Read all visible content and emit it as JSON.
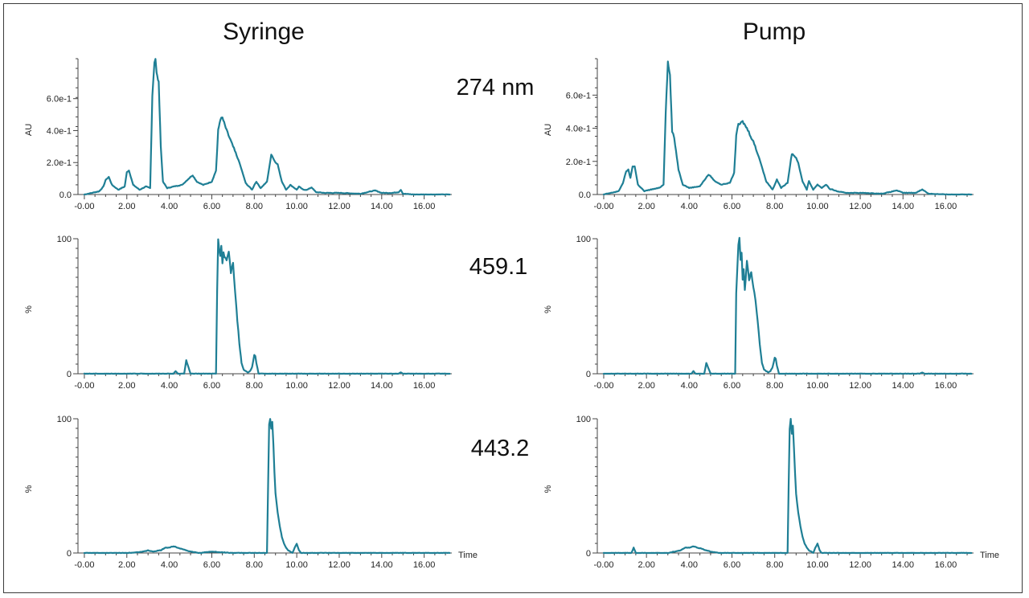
{
  "figure": {
    "column_titles": [
      "Syringe",
      "Pump"
    ],
    "row_labels": [
      "274 nm",
      "459.1",
      "443.2"
    ],
    "trace_color": "#1f7f95"
  },
  "chart_data": [
    {
      "id": "syringe-274nm",
      "type": "line",
      "column": "Syringe",
      "row_label": "274 nm",
      "ylabel": "AU",
      "xlabel": "",
      "xlim": [
        -0.3,
        17.3
      ],
      "ylim": [
        0,
        0.85
      ],
      "x_ticks": [
        "-0.00",
        "2.00",
        "4.00",
        "6.00",
        "8.00",
        "10.00",
        "12.00",
        "14.00",
        "16.00"
      ],
      "y_ticks": [
        {
          "v": 0,
          "label": "0.0"
        },
        {
          "v": 0.2,
          "label": "2.0e-1"
        },
        {
          "v": 0.4,
          "label": "4.0e-1"
        },
        {
          "v": 0.6,
          "label": "6.0e-1"
        }
      ],
      "x": [
        0.0,
        0.7,
        0.9,
        1.0,
        1.15,
        1.3,
        1.6,
        1.9,
        2.0,
        2.1,
        2.3,
        2.6,
        2.9,
        3.1,
        3.2,
        3.3,
        3.35,
        3.4,
        3.5,
        3.6,
        3.7,
        3.9,
        4.2,
        4.6,
        5.0,
        5.1,
        5.3,
        5.6,
        6.0,
        6.2,
        6.3,
        6.4,
        6.5,
        6.7,
        7.0,
        7.3,
        7.6,
        7.9,
        8.0,
        8.1,
        8.3,
        8.6,
        8.8,
        9.0,
        9.1,
        9.3,
        9.5,
        9.7,
        10.0,
        10.1,
        10.3,
        10.5,
        10.7,
        10.9,
        11.3,
        12.0,
        13.0,
        13.5,
        13.7,
        14.0,
        14.5,
        14.8,
        14.9,
        15.0,
        15.5,
        16.0,
        17.2
      ],
      "y": [
        0.0,
        0.02,
        0.05,
        0.09,
        0.11,
        0.06,
        0.03,
        0.05,
        0.14,
        0.15,
        0.06,
        0.03,
        0.05,
        0.04,
        0.62,
        0.83,
        0.85,
        0.76,
        0.7,
        0.3,
        0.08,
        0.04,
        0.05,
        0.06,
        0.11,
        0.12,
        0.08,
        0.06,
        0.08,
        0.15,
        0.4,
        0.47,
        0.48,
        0.4,
        0.3,
        0.2,
        0.07,
        0.03,
        0.06,
        0.08,
        0.04,
        0.08,
        0.25,
        0.2,
        0.19,
        0.08,
        0.03,
        0.06,
        0.03,
        0.05,
        0.03,
        0.03,
        0.045,
        0.015,
        0.01,
        0.01,
        0.005,
        0.02,
        0.025,
        0.01,
        0.01,
        0.015,
        0.03,
        0.005,
        0.0,
        0.0,
        0.0
      ]
    },
    {
      "id": "pump-274nm",
      "type": "line",
      "column": "Pump",
      "row_label": "274 nm",
      "ylabel": "AU",
      "xlabel": "",
      "xlim": [
        -0.3,
        17.3
      ],
      "ylim": [
        0,
        0.82
      ],
      "x_ticks": [
        "-0.00",
        "2.00",
        "4.00",
        "6.00",
        "8.00",
        "10.00",
        "12.00",
        "14.00",
        "16.00"
      ],
      "y_ticks": [
        {
          "v": 0,
          "label": "0.0"
        },
        {
          "v": 0.2,
          "label": "2.0e-1"
        },
        {
          "v": 0.4,
          "label": "4.0e-1"
        },
        {
          "v": 0.6,
          "label": "6.0e-1"
        }
      ],
      "x": [
        0.0,
        0.7,
        0.9,
        1.05,
        1.15,
        1.25,
        1.35,
        1.45,
        1.6,
        1.9,
        2.2,
        2.6,
        2.8,
        2.9,
        3.0,
        3.1,
        3.2,
        3.3,
        3.5,
        3.7,
        4.0,
        4.5,
        4.9,
        5.0,
        5.2,
        5.5,
        5.9,
        6.1,
        6.2,
        6.3,
        6.5,
        6.7,
        7.0,
        7.3,
        7.6,
        7.9,
        8.0,
        8.1,
        8.3,
        8.6,
        8.8,
        9.0,
        9.1,
        9.3,
        9.5,
        9.6,
        9.8,
        10.0,
        10.2,
        10.4,
        10.6,
        10.7,
        10.9,
        11.3,
        12.0,
        13.0,
        13.4,
        13.7,
        14.0,
        14.6,
        14.8,
        14.9,
        15.2,
        16.0,
        17.2
      ],
      "y": [
        0.0,
        0.02,
        0.07,
        0.14,
        0.15,
        0.1,
        0.17,
        0.17,
        0.06,
        0.02,
        0.03,
        0.04,
        0.06,
        0.5,
        0.8,
        0.72,
        0.38,
        0.34,
        0.15,
        0.06,
        0.04,
        0.05,
        0.12,
        0.11,
        0.08,
        0.06,
        0.07,
        0.13,
        0.36,
        0.42,
        0.44,
        0.4,
        0.32,
        0.21,
        0.08,
        0.03,
        0.06,
        0.09,
        0.04,
        0.07,
        0.25,
        0.22,
        0.19,
        0.08,
        0.03,
        0.08,
        0.03,
        0.06,
        0.04,
        0.06,
        0.03,
        0.03,
        0.02,
        0.01,
        0.01,
        0.005,
        0.015,
        0.025,
        0.01,
        0.01,
        0.025,
        0.03,
        0.005,
        0.0,
        0.0
      ]
    },
    {
      "id": "syringe-459",
      "type": "line",
      "column": "Syringe",
      "row_label": "459.1",
      "ylabel": "%",
      "xlabel": "",
      "xlim": [
        -0.3,
        17.3
      ],
      "ylim": [
        0,
        100
      ],
      "x_ticks": [
        "-0.00",
        "2.00",
        "4.00",
        "6.00",
        "8.00",
        "10.00",
        "12.00",
        "14.00",
        "16.00"
      ],
      "y_ticks": [
        {
          "v": 0,
          "label": "0"
        },
        {
          "v": 100,
          "label": "100"
        }
      ],
      "x": [
        0.0,
        2.0,
        3.0,
        4.0,
        4.2,
        4.3,
        4.4,
        4.7,
        4.8,
        4.9,
        5.0,
        5.5,
        6.0,
        6.2,
        6.25,
        6.3,
        6.35,
        6.4,
        6.45,
        6.5,
        6.55,
        6.6,
        6.7,
        6.8,
        6.9,
        7.0,
        7.1,
        7.2,
        7.3,
        7.4,
        7.5,
        7.6,
        7.7,
        7.8,
        7.9,
        8.0,
        8.05,
        8.1,
        8.2,
        8.5,
        9.0,
        12.0,
        14.8,
        14.9,
        15.0,
        17.2
      ],
      "y": [
        0,
        0,
        0,
        0,
        0,
        2,
        0,
        0,
        10,
        5,
        0,
        0,
        0,
        0,
        60,
        100,
        92,
        88,
        95,
        82,
        90,
        86,
        84,
        91,
        75,
        82,
        60,
        40,
        22,
        8,
        3,
        2,
        1,
        2,
        5,
        14,
        13,
        8,
        0,
        0,
        0,
        0,
        0,
        1,
        0,
        0
      ]
    },
    {
      "id": "pump-459",
      "type": "line",
      "column": "Pump",
      "row_label": "459.1",
      "ylabel": "%",
      "xlabel": "",
      "xlim": [
        -0.3,
        17.3
      ],
      "ylim": [
        0,
        100
      ],
      "x_ticks": [
        "-0.00",
        "2.00",
        "4.00",
        "6.00",
        "8.00",
        "10.00",
        "12.00",
        "14.00",
        "16.00"
      ],
      "y_ticks": [
        {
          "v": 0,
          "label": "0"
        },
        {
          "v": 100,
          "label": "100"
        }
      ],
      "x": [
        0.0,
        2.0,
        3.0,
        4.0,
        4.1,
        4.2,
        4.3,
        4.7,
        4.8,
        4.9,
        5.0,
        5.5,
        6.0,
        6.15,
        6.2,
        6.3,
        6.35,
        6.4,
        6.45,
        6.5,
        6.55,
        6.6,
        6.7,
        6.8,
        6.9,
        7.0,
        7.1,
        7.2,
        7.3,
        7.4,
        7.5,
        7.6,
        7.7,
        7.8,
        7.9,
        8.0,
        8.05,
        8.1,
        8.2,
        8.5,
        9.0,
        12.0,
        14.8,
        14.9,
        15.0,
        17.2
      ],
      "y": [
        0,
        0,
        0,
        0,
        0,
        2,
        0,
        0,
        8,
        4,
        0,
        0,
        0,
        0,
        60,
        96,
        100,
        85,
        90,
        70,
        78,
        62,
        84,
        70,
        75,
        65,
        55,
        40,
        22,
        8,
        3,
        2,
        1,
        2,
        5,
        12,
        11,
        6,
        0,
        0,
        0,
        0,
        0,
        1,
        0,
        0
      ]
    },
    {
      "id": "syringe-443",
      "type": "line",
      "column": "Syringe",
      "row_label": "443.2",
      "ylabel": "%",
      "xlabel": "Time",
      "xlim": [
        -0.3,
        17.3
      ],
      "ylim": [
        0,
        100
      ],
      "x_ticks": [
        "-0.00",
        "2.00",
        "4.00",
        "6.00",
        "8.00",
        "10.00",
        "12.00",
        "14.00",
        "16.00"
      ],
      "y_ticks": [
        {
          "v": 0,
          "label": "0"
        },
        {
          "v": 100,
          "label": "100"
        }
      ],
      "x": [
        0.0,
        1.0,
        2.0,
        2.8,
        3.0,
        3.2,
        3.6,
        3.8,
        4.0,
        4.2,
        4.4,
        4.6,
        4.8,
        5.0,
        5.4,
        6.0,
        7.0,
        8.0,
        8.5,
        8.6,
        8.65,
        8.7,
        8.75,
        8.8,
        8.85,
        8.9,
        8.95,
        9.0,
        9.1,
        9.2,
        9.3,
        9.4,
        9.5,
        9.6,
        9.8,
        9.9,
        10.0,
        10.1,
        10.2,
        11.0,
        12.0,
        14.0,
        15.0,
        17.2
      ],
      "y": [
        0,
        0,
        0,
        1,
        2,
        1,
        2,
        4,
        4,
        5,
        4,
        3,
        2,
        1,
        0,
        1,
        0,
        0,
        0,
        0,
        50,
        95,
        100,
        92,
        98,
        80,
        60,
        45,
        30,
        20,
        12,
        7,
        4,
        2,
        0,
        4,
        7,
        2,
        0,
        0,
        0,
        0,
        0,
        0
      ]
    },
    {
      "id": "pump-443",
      "type": "line",
      "column": "Pump",
      "row_label": "443.2",
      "ylabel": "%",
      "xlabel": "Time",
      "xlim": [
        -0.3,
        17.3
      ],
      "ylim": [
        0,
        100
      ],
      "x_ticks": [
        "-0.00",
        "2.00",
        "4.00",
        "6.00",
        "8.00",
        "10.00",
        "12.00",
        "14.00",
        "16.00"
      ],
      "y_ticks": [
        {
          "v": 0,
          "label": "0"
        },
        {
          "v": 100,
          "label": "100"
        }
      ],
      "x": [
        0.0,
        1.0,
        1.3,
        1.4,
        1.5,
        2.0,
        3.0,
        3.6,
        3.8,
        4.0,
        4.2,
        4.4,
        4.6,
        4.8,
        5.0,
        5.4,
        6.0,
        7.0,
        8.0,
        8.5,
        8.6,
        8.65,
        8.7,
        8.75,
        8.8,
        8.85,
        8.9,
        8.95,
        9.0,
        9.1,
        9.2,
        9.3,
        9.4,
        9.5,
        9.6,
        9.8,
        9.9,
        10.0,
        10.1,
        10.2,
        11.0,
        12.0,
        14.0,
        15.0,
        17.2
      ],
      "y": [
        0,
        0,
        0,
        4,
        0,
        0,
        0,
        2,
        4,
        4,
        5,
        4,
        3,
        2,
        1,
        0,
        0,
        0,
        0,
        0,
        0,
        50,
        92,
        100,
        88,
        95,
        78,
        60,
        45,
        30,
        20,
        12,
        7,
        4,
        2,
        0,
        4,
        7,
        2,
        0,
        0,
        0,
        0,
        0,
        0
      ]
    }
  ]
}
